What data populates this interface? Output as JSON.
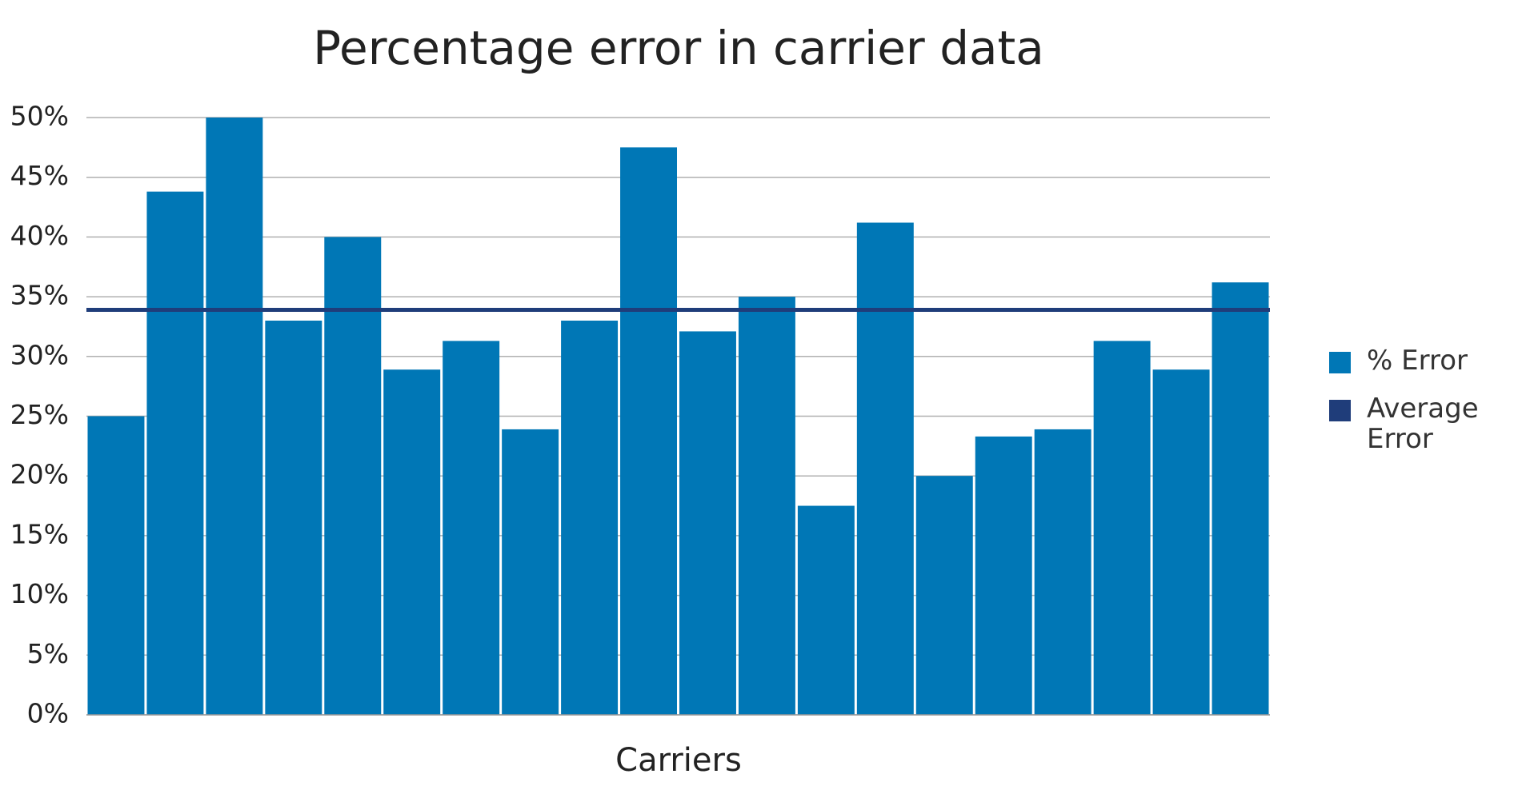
{
  "chart_data": {
    "type": "bar",
    "title": "Percentage error in carrier data",
    "x_label": "Carriers",
    "categories": [
      null,
      null,
      null,
      null,
      null,
      null,
      null,
      null,
      null,
      null,
      null,
      null,
      null,
      null,
      null,
      null,
      null,
      null,
      null,
      null
    ],
    "series": [
      {
        "name": "% Error",
        "color": "#0077b6",
        "values": [
          25.0,
          43.8,
          50.0,
          33.0,
          40.0,
          28.9,
          31.3,
          23.9,
          33.0,
          47.5,
          32.1,
          35.0,
          17.5,
          41.2,
          20.0,
          23.3,
          23.9,
          31.3,
          28.9,
          36.2
        ]
      },
      {
        "name": "Average Error",
        "color": "#1f3d7a",
        "type": "line",
        "value": 33.9
      }
    ],
    "ylim": [
      0,
      50
    ],
    "yticks": [
      {
        "value": 0,
        "label": "0%"
      },
      {
        "value": 5,
        "label": "5%"
      },
      {
        "value": 10,
        "label": "10%"
      },
      {
        "value": 15,
        "label": "15%"
      },
      {
        "value": 20,
        "label": "20%"
      },
      {
        "value": 25,
        "label": "25%"
      },
      {
        "value": 30,
        "label": "30%"
      },
      {
        "value": 35,
        "label": "35%"
      },
      {
        "value": 40,
        "label": "40%"
      },
      {
        "value": 45,
        "label": "45%"
      },
      {
        "value": 50,
        "label": "50%"
      }
    ],
    "grid": true,
    "legend": "right"
  }
}
